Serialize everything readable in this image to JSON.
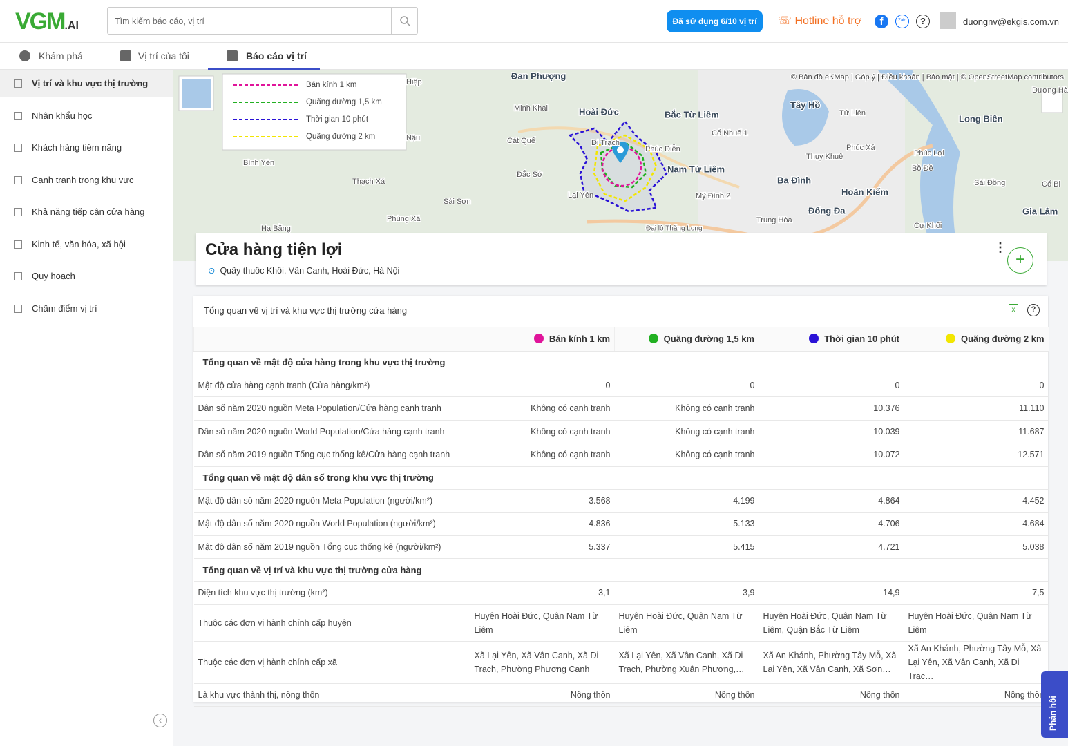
{
  "header": {
    "logo": "VGM",
    "logo_suffix": ".AI",
    "search_placeholder": "Tìm kiếm báo cáo, vị trí",
    "usage": "Đã sử dụng 6/10 vị trí",
    "hotline": "Hotline hỗ trợ",
    "email": "duongnv@ekgis.com.vn"
  },
  "tabs": [
    "Khám phá",
    "Vị trí của tôi",
    "Báo cáo vị trí"
  ],
  "sidebar": [
    "Vị trí và khu vực thị trường",
    "Nhân khẩu học",
    "Khách hàng tiềm năng",
    "Cạnh tranh trong khu vực",
    "Khả năng tiếp cận cửa hàng",
    "Kinh tế, văn hóa, xã hội",
    "Quy hoạch",
    "Chấm điểm vị trí"
  ],
  "map": {
    "attribution": "© Bản đồ eKMap | Góp ý | Điều khoản | Bảo mật | © OpenStreetMap contributors",
    "legend": [
      {
        "label": "Bán kính  1 km",
        "color": "#e0149a"
      },
      {
        "label": "Quãng đường  1,5 km",
        "color": "#22b022"
      },
      {
        "label": "Thời gian  10 phút",
        "color": "#2a12d6"
      },
      {
        "label": "Quãng đường  2 km",
        "color": "#f2e600"
      }
    ],
    "places": [
      "Đan Phượng",
      "Hoài Đức",
      "Bắc Từ Liêm",
      "Tây Hồ",
      "Long Biên",
      "Minh Khai",
      "Cát Quế",
      "Di Trạch",
      "Phúc Diễn",
      "Nam Từ Liêm",
      "Cổ Nhuế 1",
      "Thụy Khuê",
      "Phúc Xá",
      "Phúc Lợi",
      "Bình Yên",
      "Đắc Sở",
      "Thạch Xá",
      "Lại Yên",
      "Sài Sơn",
      "Mỹ Đình 2",
      "Ba Đình",
      "Hoàn Kiếm",
      "Bồ Đề",
      "Sài Đồng",
      "Cổ Bi",
      "Đống Đa",
      "Gia Lâm",
      "Phùng Xá",
      "Hạ Bằng",
      "Trung Hòa",
      "Cự Khối",
      "Tứ Liên",
      "Dương Hà",
      "Đại lộ Thăng Long",
      "Hiệp",
      "Nậu"
    ]
  },
  "store": {
    "title": "Cửa hàng tiện lợi",
    "address": "Quầy thuốc Khôi, Vân Canh, Hoài Đức, Hà Nội"
  },
  "table": {
    "title": "Tổng quan về vị trí và khu vực thị trường cửa hàng",
    "columns": [
      {
        "label": "Bán kính 1 km",
        "color": "#e0149a"
      },
      {
        "label": "Quãng đường 1,5 km",
        "color": "#22b022"
      },
      {
        "label": "Thời gian 10 phút",
        "color": "#2a12d6"
      },
      {
        "label": "Quãng đường 2 km",
        "color": "#f2e600"
      }
    ],
    "sections": [
      {
        "title": "Tổng quan về mật độ cửa hàng trong khu vực thị trường",
        "rows": [
          {
            "label": "Mật độ cửa hàng cạnh tranh (Cửa hàng/km²)",
            "values": [
              "0",
              "0",
              "0",
              "0"
            ]
          },
          {
            "label": "Dân số năm 2020 nguồn Meta Population/Cửa hàng cạnh tranh",
            "values": [
              "Không có cạnh tranh",
              "Không có cạnh tranh",
              "10.376",
              "11.110"
            ]
          },
          {
            "label": "Dân số năm 2020 nguồn World Population/Cửa hàng cạnh tranh",
            "values": [
              "Không có cạnh tranh",
              "Không có cạnh tranh",
              "10.039",
              "11.687"
            ]
          },
          {
            "label": "Dân số năm 2019 nguồn Tổng cục thống kê/Cửa hàng cạnh tranh",
            "values": [
              "Không có cạnh tranh",
              "Không có cạnh tranh",
              "10.072",
              "12.571"
            ]
          }
        ]
      },
      {
        "title": "Tổng quan về mật độ dân số trong khu vực thị trường",
        "rows": [
          {
            "label": "Mật độ dân số năm 2020 nguồn Meta Population (người/km²)",
            "values": [
              "3.568",
              "4.199",
              "4.864",
              "4.452"
            ]
          },
          {
            "label": "Mật độ dân số năm 2020 nguồn World Population (người/km²)",
            "values": [
              "4.836",
              "5.133",
              "4.706",
              "4.684"
            ]
          },
          {
            "label": "Mật độ dân số năm 2019 nguồn Tổng cục thống kê (người/km²)",
            "values": [
              "5.337",
              "5.415",
              "4.721",
              "5.038"
            ]
          }
        ]
      },
      {
        "title": "Tổng quan về vị trí và khu vực thị trường cửa hàng",
        "rows": [
          {
            "label": "Diện tích khu vực thị trường (km²)",
            "values": [
              "3,1",
              "3,9",
              "14,9",
              "7,5"
            ]
          },
          {
            "label": "Thuộc các đơn vị hành chính cấp huyện",
            "values": [
              "Huyện Hoài Đức, Quận Nam Từ Liêm",
              "Huyện Hoài Đức, Quận Nam Từ Liêm",
              "Huyện Hoài Đức, Quận Nam Từ Liêm, Quận Bắc Từ Liêm",
              "Huyện Hoài Đức, Quận Nam Từ Liêm"
            ]
          },
          {
            "label": "Thuộc các đơn vị hành chính cấp xã",
            "values": [
              "Xã Lại Yên, Xã Vân Canh, Xã Di Trạch, Phường Phương Canh",
              "Xã Lại Yên, Xã Vân Canh, Xã Di Trạch, Phường Xuân Phương,…",
              "Xã An Khánh, Phường Tây Mỗ, Xã Lại Yên, Xã Vân Canh, Xã Sơn…",
              "Xã An Khánh, Phường Tây Mỗ, Xã Lại Yên, Xã Vân Canh, Xã Di Trạc…"
            ]
          },
          {
            "label": "Là khu vực thành thị, nông thôn",
            "values": [
              "Nông thôn",
              "Nông thôn",
              "Nông thôn",
              "Nông thôn"
            ]
          }
        ]
      }
    ]
  },
  "feedback": "Phản hồi"
}
